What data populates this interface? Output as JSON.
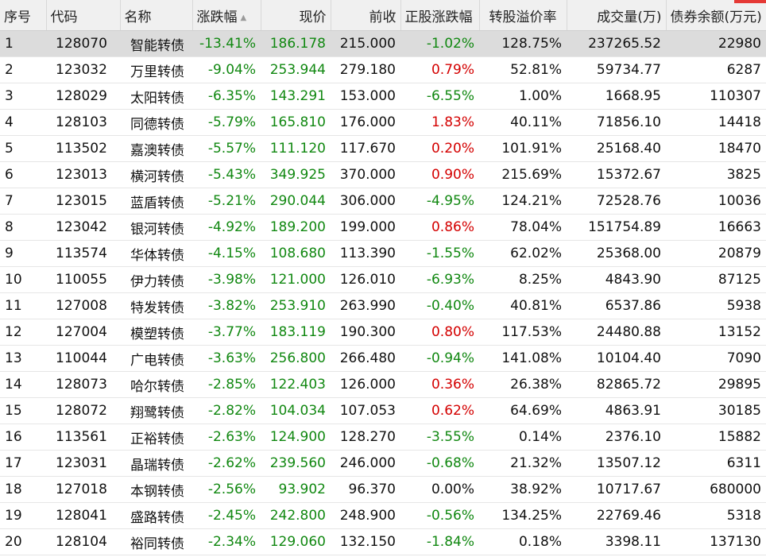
{
  "colors": {
    "up": "#d40000",
    "down": "#118811",
    "flat": "#111111",
    "header_bg": "#f0f0f0",
    "selected_row_bg": "#dcdcdc",
    "corner_mark": "#e53935"
  },
  "sort": {
    "column": "涨跌幅",
    "icon": "sort-up-triangle-icon",
    "glyph": "▲"
  },
  "columns": [
    "序号",
    "代码",
    "名称",
    "涨跌幅",
    "现价",
    "前收",
    "正股涨跌幅",
    "转股溢价率",
    "成交量(万)",
    "债券余额(万元)"
  ],
  "rows": [
    {
      "no": "1",
      "code": "128070",
      "name": "智能转债",
      "chg": "-13.41%",
      "price": "186.178",
      "prev": "215.000",
      "stock_chg": "-1.02%",
      "premium": "128.75%",
      "volume": "237265.52",
      "balance": "22980"
    },
    {
      "no": "2",
      "code": "123032",
      "name": "万里转债",
      "chg": "-9.04%",
      "price": "253.944",
      "prev": "279.180",
      "stock_chg": "0.79%",
      "premium": "52.81%",
      "volume": "59734.77",
      "balance": "6287"
    },
    {
      "no": "3",
      "code": "128029",
      "name": "太阳转债",
      "chg": "-6.35%",
      "price": "143.291",
      "prev": "153.000",
      "stock_chg": "-6.55%",
      "premium": "1.00%",
      "volume": "1668.95",
      "balance": "110307"
    },
    {
      "no": "4",
      "code": "128103",
      "name": "同德转债",
      "chg": "-5.79%",
      "price": "165.810",
      "prev": "176.000",
      "stock_chg": "1.83%",
      "premium": "40.11%",
      "volume": "71856.10",
      "balance": "14418"
    },
    {
      "no": "5",
      "code": "113502",
      "name": "嘉澳转债",
      "chg": "-5.57%",
      "price": "111.120",
      "prev": "117.670",
      "stock_chg": "0.20%",
      "premium": "101.91%",
      "volume": "25168.40",
      "balance": "18470"
    },
    {
      "no": "6",
      "code": "123013",
      "name": "横河转债",
      "chg": "-5.43%",
      "price": "349.925",
      "prev": "370.000",
      "stock_chg": "0.90%",
      "premium": "215.69%",
      "volume": "15372.67",
      "balance": "3825"
    },
    {
      "no": "7",
      "code": "123015",
      "name": "蓝盾转债",
      "chg": "-5.21%",
      "price": "290.044",
      "prev": "306.000",
      "stock_chg": "-4.95%",
      "premium": "124.21%",
      "volume": "72528.76",
      "balance": "10036"
    },
    {
      "no": "8",
      "code": "123042",
      "name": "银河转债",
      "chg": "-4.92%",
      "price": "189.200",
      "prev": "199.000",
      "stock_chg": "0.86%",
      "premium": "78.04%",
      "volume": "151754.89",
      "balance": "16663"
    },
    {
      "no": "9",
      "code": "113574",
      "name": "华体转债",
      "chg": "-4.15%",
      "price": "108.680",
      "prev": "113.390",
      "stock_chg": "-1.55%",
      "premium": "62.02%",
      "volume": "25368.00",
      "balance": "20879"
    },
    {
      "no": "10",
      "code": "110055",
      "name": "伊力转债",
      "chg": "-3.98%",
      "price": "121.000",
      "prev": "126.010",
      "stock_chg": "-6.93%",
      "premium": "8.25%",
      "volume": "4843.90",
      "balance": "87125"
    },
    {
      "no": "11",
      "code": "127008",
      "name": "特发转债",
      "chg": "-3.82%",
      "price": "253.910",
      "prev": "263.990",
      "stock_chg": "-0.40%",
      "premium": "40.81%",
      "volume": "6537.86",
      "balance": "5938"
    },
    {
      "no": "12",
      "code": "127004",
      "name": "模塑转债",
      "chg": "-3.77%",
      "price": "183.119",
      "prev": "190.300",
      "stock_chg": "0.80%",
      "premium": "117.53%",
      "volume": "24480.88",
      "balance": "13152"
    },
    {
      "no": "13",
      "code": "110044",
      "name": "广电转债",
      "chg": "-3.63%",
      "price": "256.800",
      "prev": "266.480",
      "stock_chg": "-0.94%",
      "premium": "141.08%",
      "volume": "10104.40",
      "balance": "7090"
    },
    {
      "no": "14",
      "code": "128073",
      "name": "哈尔转债",
      "chg": "-2.85%",
      "price": "122.403",
      "prev": "126.000",
      "stock_chg": "0.36%",
      "premium": "26.38%",
      "volume": "82865.72",
      "balance": "29895"
    },
    {
      "no": "15",
      "code": "128072",
      "name": "翔鹭转债",
      "chg": "-2.82%",
      "price": "104.034",
      "prev": "107.053",
      "stock_chg": "0.62%",
      "premium": "64.69%",
      "volume": "4863.91",
      "balance": "30185"
    },
    {
      "no": "16",
      "code": "113561",
      "name": "正裕转债",
      "chg": "-2.63%",
      "price": "124.900",
      "prev": "128.270",
      "stock_chg": "-3.55%",
      "premium": "0.14%",
      "volume": "2376.10",
      "balance": "15882"
    },
    {
      "no": "17",
      "code": "123031",
      "name": "晶瑞转债",
      "chg": "-2.62%",
      "price": "239.560",
      "prev": "246.000",
      "stock_chg": "-0.68%",
      "premium": "21.32%",
      "volume": "13507.12",
      "balance": "6311"
    },
    {
      "no": "18",
      "code": "127018",
      "name": "本钢转债",
      "chg": "-2.56%",
      "price": "93.902",
      "prev": "96.370",
      "stock_chg": "0.00%",
      "premium": "38.92%",
      "volume": "10717.67",
      "balance": "680000"
    },
    {
      "no": "19",
      "code": "128041",
      "name": "盛路转债",
      "chg": "-2.45%",
      "price": "242.800",
      "prev": "248.900",
      "stock_chg": "-0.56%",
      "premium": "134.25%",
      "volume": "22769.46",
      "balance": "5318"
    },
    {
      "no": "20",
      "code": "128104",
      "name": "裕同转债",
      "chg": "-2.34%",
      "price": "129.060",
      "prev": "132.150",
      "stock_chg": "-1.84%",
      "premium": "0.18%",
      "volume": "3398.11",
      "balance": "137130"
    }
  ]
}
